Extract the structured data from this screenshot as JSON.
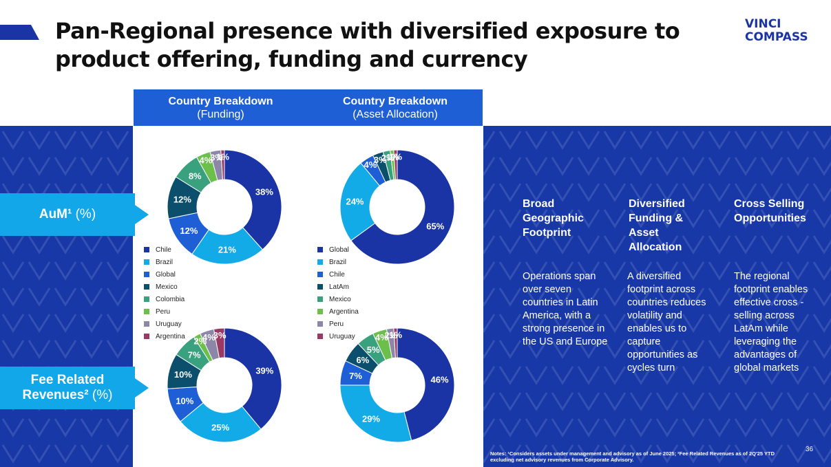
{
  "title": "Pan-Regional presence with diversified exposure to product offering, funding and currency",
  "logo": {
    "line1": "VINCI",
    "line2": "COMPASS"
  },
  "headers": {
    "funding": {
      "main": "Country Breakdown",
      "sub": "(Funding)"
    },
    "asset": {
      "main": "Country Breakdown",
      "sub": "(Asset Allocation)"
    }
  },
  "row_labels": {
    "aum": {
      "main": "AuM¹",
      "suffix": " (%)"
    },
    "fee": {
      "main1": "Fee Related",
      "main2": "Revenues²",
      "suffix": " (%)"
    }
  },
  "legends": {
    "funding": [
      "Chile",
      "Brazil",
      "Global",
      "Mexico",
      "Colombia",
      "Peru",
      "Uruguay",
      "Argentina"
    ],
    "asset": [
      "Global",
      "Brazil",
      "Chile",
      "LatAm",
      "Mexico",
      "Argentina",
      "Peru",
      "Uruguay"
    ]
  },
  "colors": {
    "c1": "#1a33a5",
    "c2": "#12abe8",
    "c3": "#1f5fd6",
    "c4": "#0b4f6c",
    "c5": "#3aa17e",
    "c6": "#6cbf4a",
    "c7": "#8c86a8",
    "c8": "#9a3a64",
    "band": "#1838a8"
  },
  "chart_data": [
    {
      "type": "pie",
      "id": "aum-funding",
      "title": "AuM - Country Breakdown (Funding)",
      "categories": [
        "Chile",
        "Brazil",
        "Global",
        "Mexico",
        "Colombia",
        "Peru",
        "Uruguay",
        "Argentina"
      ],
      "values": [
        38,
        21,
        12,
        12,
        8,
        4,
        3,
        1
      ],
      "labels": [
        "38%",
        "21%",
        "12%",
        "12%",
        "8%",
        "4%",
        "3%",
        "1%"
      ]
    },
    {
      "type": "pie",
      "id": "aum-asset",
      "title": "AuM - Country Breakdown (Asset Allocation)",
      "categories": [
        "Global",
        "Brazil",
        "Chile",
        "LatAm",
        "Mexico",
        "Argentina",
        "Peru",
        "Uruguay"
      ],
      "values": [
        65,
        24,
        4,
        3,
        2,
        1,
        0,
        1
      ],
      "labels": [
        "65%",
        "24%",
        "4%",
        "3%",
        "2%",
        "1%",
        "",
        "1%"
      ]
    },
    {
      "type": "pie",
      "id": "fee-funding",
      "title": "Fee Related Revenues - Country Breakdown (Funding)",
      "categories": [
        "Chile",
        "Brazil",
        "Global",
        "Mexico",
        "Colombia",
        "Peru",
        "Uruguay",
        "Argentina"
      ],
      "values": [
        39,
        25,
        10,
        10,
        7,
        2,
        4,
        3
      ],
      "labels": [
        "39%",
        "25%",
        "10%",
        "10%",
        "7%",
        "2%",
        "4%",
        "3%"
      ]
    },
    {
      "type": "pie",
      "id": "fee-asset",
      "title": "Fee Related Revenues - Country Breakdown (Asset Allocation)",
      "categories": [
        "Global",
        "Brazil",
        "Chile",
        "LatAm",
        "Mexico",
        "Argentina",
        "Peru",
        "Uruguay"
      ],
      "values": [
        46,
        29,
        7,
        6,
        5,
        4,
        2,
        1
      ],
      "labels": [
        "46%",
        "29%",
        "7%",
        "6%",
        "5%",
        "4%",
        "2%",
        "1%"
      ]
    }
  ],
  "pillars": [
    {
      "title": "Broad Geographic Footprint",
      "text": "Operations span over seven countries in Latin America, with a strong presence in the US and Europe"
    },
    {
      "title": "Diversified Funding & Asset Allocation",
      "text": "A diversified footprint across countries reduces volatility and enables us to capture opportunities as cycles turn"
    },
    {
      "title": "Cross Selling Opportunities",
      "text": "The regional footprint enables effective cross -selling across LatAm while leveraging the advantages of global markets"
    }
  ],
  "notes": "Notes: ¹Considers assets under management and advisory as of June 2025; ²Fee Related Revenues as of 2Q'25 YTD excluding net advisory revenues from Corporate Advisory.",
  "page_number": "36"
}
